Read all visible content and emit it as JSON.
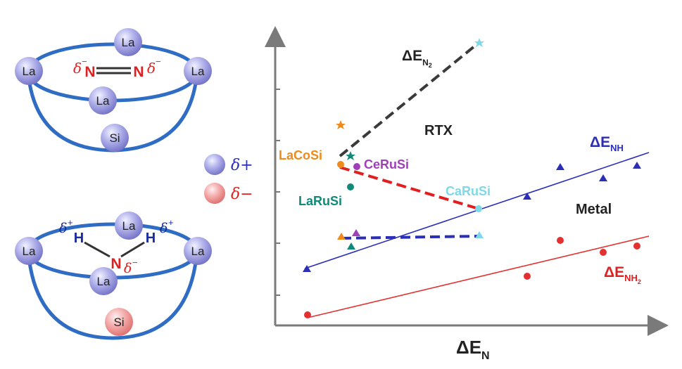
{
  "colors": {
    "axis": "#7a7a7a",
    "cage": "#2f6cc4",
    "atom_pos": "#8f8fd8",
    "atom_neg": "#ec8e8e",
    "nitrogen": "#e02020",
    "hydrogen": "#1a2ca0",
    "nh_line": "#2b2fb8",
    "nh2_line": "#e33030",
    "n2_line": "#3a3a3a",
    "rtx_line": "#e02020",
    "lacosi": "#f08a1a",
    "cerusi": "#a040b8",
    "larusi": "#0f8a7a",
    "carusi": "#7fd8e8"
  },
  "legend": {
    "pos_label": "δ+",
    "neg_label": "δ−"
  },
  "top_cage": {
    "atoms": [
      "La",
      "La",
      "La",
      "La",
      "Si"
    ],
    "n_left": "N",
    "n_right": "N",
    "delta_left": "δ",
    "delta_right": "δ",
    "charge_sign": "−"
  },
  "bottom_cage": {
    "atoms": [
      "La",
      "La",
      "La",
      "La",
      "Si"
    ],
    "h_left": "H",
    "h_right": "H",
    "n_center": "N",
    "delta_plus_left": "δ",
    "delta_plus_right": "δ",
    "delta_minus": "δ",
    "plus_sign": "+",
    "minus_sign": "−"
  },
  "chart_data": {
    "type": "scatter",
    "xlabel": "ΔE",
    "xlabel_sub": "N",
    "region_labels": [
      "RTX",
      "Metal"
    ],
    "line_labels": {
      "n2": {
        "main": "ΔE",
        "sub": "N",
        "sub2": "2"
      },
      "nh": {
        "main": "ΔE",
        "sub": "NH"
      },
      "nh2": {
        "main": "ΔE",
        "sub": "NH",
        "sub2": "2"
      }
    },
    "compounds": [
      "LaCoSi",
      "CeRuSi",
      "LaRuSi",
      "CaRuSi"
    ]
  }
}
